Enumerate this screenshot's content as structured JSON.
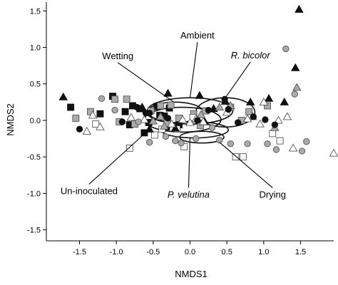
{
  "chart_data": {
    "type": "scatter",
    "title": "",
    "xlabel": "NMDS1",
    "ylabel": "NMDS2",
    "xlim": [
      -1.95,
      1.95
    ],
    "ylim": [
      -1.65,
      1.62
    ],
    "grid": false,
    "legend": "none",
    "xticks": [
      -1.5,
      -1.0,
      -0.5,
      0.0,
      0.5,
      1.0,
      1.5
    ],
    "xtick_labels": [
      "-1.5",
      "-1.0",
      "-0.5",
      "0.0",
      "0.5",
      "1.0",
      "1.5"
    ],
    "yticks": [
      -1.5,
      -1.0,
      -0.5,
      0.0,
      0.5,
      1.0,
      1.5
    ],
    "ytick_labels": [
      "-1.5",
      "-1.0",
      "-0.5",
      "0.0",
      "0.5",
      "1.0",
      "1.5"
    ],
    "colors": {
      "black": "#111111",
      "dark_gray": "#6e6e6e",
      "gray_fill": "#aaaaaa",
      "light_gray": "#c8c8c8",
      "white": "#ffffff",
      "ellipse": "#111111"
    },
    "series": [
      {
        "marker": "square",
        "fill": "#111111",
        "x": [
          -1.62,
          -1.22,
          -1.05,
          -0.88,
          -0.82,
          -0.78,
          -0.68,
          -0.62,
          -0.56,
          -0.45,
          -0.41,
          -0.35,
          -0.32,
          -0.28,
          -0.15
        ],
        "y": [
          0.18,
          0.09,
          0.33,
          0.12,
          -0.06,
          0.2,
          0.16,
          -0.17,
          -0.03,
          0.19,
          0.07,
          0.06,
          -0.09,
          0.17,
          -0.06
        ]
      },
      {
        "marker": "square",
        "fill": "#aaaaaa",
        "x": [
          -1.55,
          -1.35,
          -1.02,
          -0.96,
          -0.86,
          -0.75,
          -0.53,
          -0.4,
          -0.31,
          -0.26,
          -0.15,
          0.05,
          0.14,
          0.21,
          0.55,
          0.7,
          0.8,
          1.05
        ],
        "y": [
          0.03,
          0.12,
          0.29,
          -0.02,
          0.29,
          -0.05,
          0.13,
          0.2,
          -0.04,
          0.21,
          0.03,
          0.09,
          -0.07,
          0.13,
          0.18,
          0.0,
          0.12,
          0.2
        ]
      },
      {
        "marker": "square",
        "fill": "#ffffff",
        "x": [
          -1.28,
          -0.82,
          -0.48,
          -0.38,
          -0.18,
          -0.08,
          0.04,
          0.62,
          0.72,
          1.12,
          1.22
        ],
        "y": [
          -0.05,
          -0.38,
          -0.2,
          -0.12,
          -0.12,
          -0.36,
          0.04,
          -0.5,
          -0.5,
          -0.18,
          -0.28
        ]
      },
      {
        "marker": "triangle",
        "fill": "#111111",
        "x": [
          -1.72,
          -0.65,
          -0.55,
          -0.3,
          -0.2,
          0.13,
          0.2,
          0.32,
          0.48,
          0.82,
          1.07,
          1.28,
          1.43,
          1.48
        ],
        "y": [
          0.32,
          0.18,
          -0.12,
          0.37,
          -0.11,
          0.34,
          -0.02,
          0.16,
          0.26,
          0.25,
          0.3,
          0.25,
          0.72,
          1.52
        ]
      },
      {
        "marker": "triangle",
        "fill": "#aaaaaa",
        "x": [
          -0.5,
          -0.4,
          -0.35,
          0.15,
          0.4,
          0.55,
          0.85,
          1.15,
          1.45
        ],
        "y": [
          -0.01,
          0.05,
          -0.08,
          0.08,
          0.18,
          0.2,
          0.05,
          -0.1,
          0.45
        ]
      },
      {
        "marker": "triangle",
        "fill": "#ffffff",
        "x": [
          -1.4,
          -1.32,
          -1.22,
          -0.8,
          -0.62,
          -0.25,
          -0.1,
          0.0,
          0.08,
          0.18,
          0.5,
          0.78,
          0.95,
          1.0,
          1.2,
          1.32,
          1.4,
          1.95
        ],
        "y": [
          -0.15,
          0.07,
          -0.09,
          0.04,
          0.01,
          -0.05,
          0.01,
          -0.03,
          0.02,
          -0.02,
          0.11,
          0.02,
          -0.05,
          0.25,
          0.0,
          0.05,
          -0.38,
          -0.45
        ]
      },
      {
        "marker": "circle",
        "fill": "#111111",
        "x": [
          -1.5,
          -0.92,
          -0.72,
          -0.6,
          -0.55,
          -0.3,
          0.1,
          0.25,
          0.47,
          0.52,
          0.65,
          0.86,
          1.02,
          1.15
        ],
        "y": [
          -0.12,
          -0.02,
          0.18,
          0.1,
          0.1,
          0.03,
          0.0,
          0.14,
          0.29,
          0.15,
          -0.03,
          0.05,
          0.01,
          -0.06
        ]
      },
      {
        "marker": "circle",
        "fill": "#aaaaaa",
        "x": [
          -1.2,
          -1.02,
          -0.7,
          -0.55,
          -0.33,
          -0.2,
          -0.12,
          0.08,
          0.3,
          0.4,
          0.55,
          0.78,
          1.05,
          1.17,
          1.3,
          1.42,
          1.52,
          1.58
        ],
        "y": [
          0.3,
          0.14,
          -0.02,
          -0.3,
          -0.22,
          -0.28,
          -0.31,
          -0.25,
          -0.1,
          -0.27,
          -0.32,
          -0.32,
          -0.32,
          -0.4,
          0.98,
          0.36,
          -0.42,
          -0.29
        ]
      }
    ],
    "ellipses": [
      {
        "cx": -0.2,
        "cy": 0.11,
        "rx": 0.38,
        "ry": 0.14,
        "label": "Wetting"
      },
      {
        "cx": -0.1,
        "cy": 0.01,
        "rx": 0.52,
        "ry": 0.17,
        "label": "Un-inoculated"
      },
      {
        "cx": 0.0,
        "cy": 0.13,
        "rx": 0.58,
        "ry": 0.18,
        "label": "Ambient"
      },
      {
        "cx": 0.48,
        "cy": 0.11,
        "rx": 0.4,
        "ry": 0.2,
        "label": "R. bicolor"
      },
      {
        "cx": 0.06,
        "cy": -0.13,
        "rx": 0.46,
        "ry": 0.11,
        "label": "P. velutina"
      },
      {
        "cx": 0.16,
        "cy": -0.23,
        "rx": 0.3,
        "ry": 0.08,
        "label": "Drying"
      }
    ],
    "annotations": [
      {
        "text": "Ambient",
        "italic": false,
        "x": 0.1,
        "y": 1.12,
        "anchor": "middle",
        "arrow_to": [
          0.0,
          0.31
        ]
      },
      {
        "text": "Wetting",
        "italic": false,
        "x": -0.98,
        "y": 0.84,
        "anchor": "middle",
        "arrow_to": [
          -0.22,
          0.25
        ]
      },
      {
        "text": "R. bicolor",
        "italic": true,
        "x": 0.82,
        "y": 0.85,
        "anchor": "middle",
        "arrow_to": [
          0.48,
          0.31
        ]
      },
      {
        "text": "Un-inoculated",
        "italic": false,
        "x": -1.37,
        "y": -1.01,
        "anchor": "middle",
        "arrow_to": [
          -0.55,
          -0.12
        ]
      },
      {
        "text": "P. velutina",
        "italic": true,
        "x": -0.02,
        "y": -1.06,
        "anchor": "middle",
        "arrow_to": [
          0.0,
          -0.24
        ]
      },
      {
        "text": "Drying",
        "italic": false,
        "x": 1.12,
        "y": -1.06,
        "anchor": "middle",
        "arrow_to": [
          0.4,
          -0.3
        ]
      }
    ]
  }
}
